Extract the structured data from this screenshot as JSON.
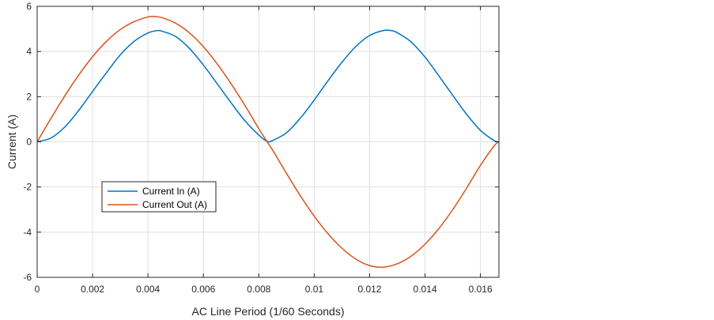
{
  "chart_data": {
    "type": "line",
    "title": "",
    "xlabel": "AC Line Period (1/60 Seconds)",
    "ylabel": "Current (A)",
    "xlim": [
      0,
      0.016667
    ],
    "ylim": [
      -6,
      6
    ],
    "xticks": [
      0,
      0.002,
      0.004,
      0.006,
      0.008,
      0.01,
      0.012,
      0.014,
      0.016
    ],
    "xtick_labels": [
      "0",
      "0.002",
      "0.004",
      "0.006",
      "0.008",
      "0.01",
      "0.012",
      "0.014",
      "0.016"
    ],
    "yticks": [
      -6,
      -4,
      -2,
      0,
      2,
      4,
      6
    ],
    "ytick_labels": [
      "-6",
      "-4",
      "-2",
      "0",
      "2",
      "4",
      "6"
    ],
    "grid": true,
    "legend_position": "lower-left",
    "series": [
      {
        "name": "Current In (A)",
        "color": "#0072BD",
        "x": [
          0,
          0.0005,
          0.001,
          0.0015,
          0.002,
          0.0025,
          0.003,
          0.0035,
          0.004,
          0.0043,
          0.0045,
          0.005,
          0.0055,
          0.006,
          0.0065,
          0.007,
          0.0075,
          0.008,
          0.0083,
          0.0085,
          0.009,
          0.0095,
          0.01,
          0.0105,
          0.011,
          0.0115,
          0.012,
          0.0125,
          0.0128,
          0.013,
          0.0135,
          0.014,
          0.0145,
          0.015,
          0.0155,
          0.016,
          0.0165,
          0.016667
        ],
        "y": [
          0,
          0.17,
          0.66,
          1.39,
          2.23,
          3.06,
          3.85,
          4.45,
          4.82,
          4.92,
          4.9,
          4.66,
          4.13,
          3.4,
          2.57,
          1.73,
          0.93,
          0.3,
          0.02,
          0.06,
          0.4,
          1.05,
          1.85,
          2.71,
          3.52,
          4.22,
          4.71,
          4.93,
          4.92,
          4.83,
          4.42,
          3.75,
          2.92,
          2.06,
          1.22,
          0.51,
          0.05,
          0
        ]
      },
      {
        "name": "Current Out (A)",
        "color": "#D95319",
        "x": [
          0,
          0.0005,
          0.001,
          0.0015,
          0.002,
          0.0025,
          0.003,
          0.0035,
          0.004,
          0.0042,
          0.0045,
          0.005,
          0.0055,
          0.006,
          0.0065,
          0.007,
          0.0075,
          0.008,
          0.0083,
          0.0085,
          0.009,
          0.0095,
          0.01,
          0.0105,
          0.011,
          0.0115,
          0.012,
          0.0125,
          0.013,
          0.0135,
          0.014,
          0.0145,
          0.015,
          0.0155,
          0.016,
          0.0165,
          0.016667
        ],
        "y": [
          0,
          1.04,
          2.04,
          2.96,
          3.77,
          4.45,
          4.97,
          5.32,
          5.53,
          5.55,
          5.5,
          5.25,
          4.82,
          4.21,
          3.45,
          2.57,
          1.61,
          0.58,
          0,
          -0.37,
          -1.4,
          -2.39,
          -3.29,
          -4.07,
          -4.71,
          -5.19,
          -5.48,
          -5.55,
          -5.4,
          -5.06,
          -4.53,
          -3.84,
          -3.0,
          -2.05,
          -1.04,
          -0.17,
          0
        ]
      }
    ]
  }
}
